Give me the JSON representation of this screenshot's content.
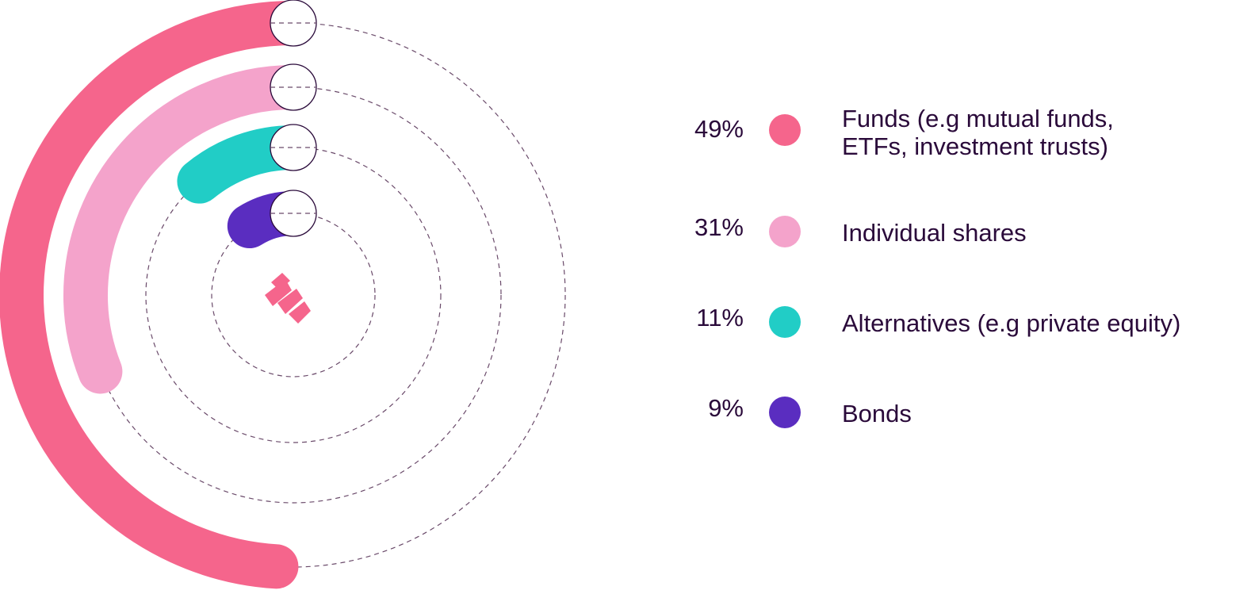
{
  "chart_data": {
    "type": "radial-bar",
    "series": [
      {
        "name": "Funds (e.g mutual funds,\nETFs, investment trusts)",
        "value": 49,
        "label": "49%",
        "color": "#f5658c"
      },
      {
        "name": "Individual shares",
        "value": 31,
        "label": "31%",
        "color": "#f4a3cb"
      },
      {
        "name": "Alternatives (e.g private equity)",
        "value": 11,
        "label": "11%",
        "color": "#21cdc6"
      },
      {
        "name": "Bonds",
        "value": 9,
        "label": "9%",
        "color": "#5a2dc0"
      }
    ]
  },
  "logo": {
    "color": "#f5658c"
  }
}
